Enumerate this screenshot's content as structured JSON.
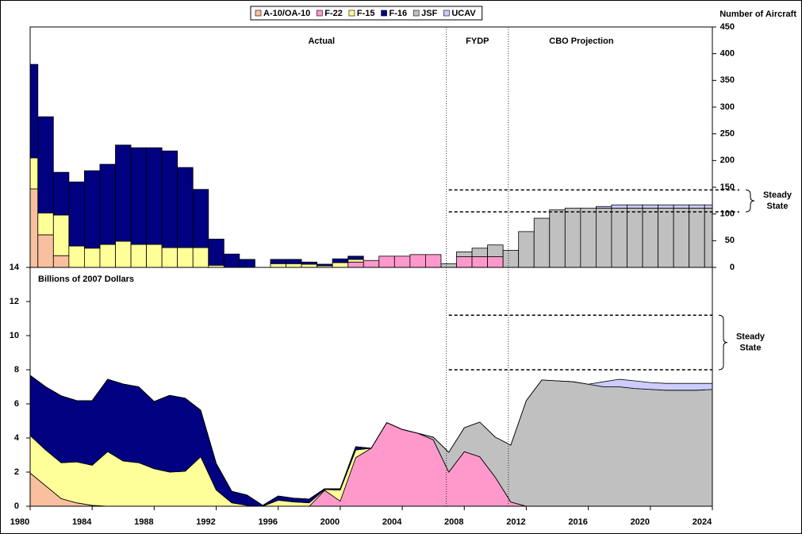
{
  "chart_data": [
    {
      "type": "bar",
      "stacked": true,
      "y_label": "Number of Aircraft",
      "x": [
        1980,
        1981,
        1982,
        1983,
        1984,
        1985,
        1986,
        1987,
        1988,
        1989,
        1990,
        1991,
        1992,
        1993,
        1994,
        1995,
        1996,
        1997,
        1998,
        1999,
        2000,
        2001,
        2002,
        2003,
        2004,
        2005,
        2006,
        2007,
        2008,
        2009,
        2010,
        2011,
        2012,
        2013,
        2014,
        2015,
        2016,
        2017,
        2018,
        2019,
        2020,
        2021,
        2022,
        2023,
        2024
      ],
      "xlim": [
        1980,
        2024
      ],
      "ylim": [
        0,
        450
      ],
      "yticks": [
        0,
        50,
        100,
        150,
        200,
        250,
        300,
        350,
        400,
        450
      ],
      "series": [
        {
          "name": "A-10/OA-10",
          "color": "#f9c09f",
          "values": [
            147,
            61,
            22,
            0,
            0,
            0,
            0,
            0,
            0,
            0,
            0,
            0,
            0,
            0,
            0,
            0,
            0,
            0,
            0,
            0,
            0,
            0,
            0,
            0,
            0,
            0,
            0,
            0,
            0,
            0,
            0,
            0,
            0,
            0,
            0,
            0,
            0,
            0,
            0,
            0,
            0,
            0,
            0,
            0,
            0
          ]
        },
        {
          "name": "F-22",
          "color": "#ff99cc",
          "values": [
            0,
            0,
            0,
            0,
            0,
            0,
            0,
            0,
            0,
            0,
            0,
            0,
            0,
            0,
            0,
            0,
            0,
            0,
            0,
            0,
            0,
            10,
            13,
            21,
            21,
            24,
            24,
            0,
            20,
            20,
            20,
            0,
            0,
            0,
            0,
            0,
            0,
            0,
            0,
            0,
            0,
            0,
            0,
            0,
            0
          ]
        },
        {
          "name": "F-15",
          "color": "#ffff99",
          "values": [
            58,
            41,
            76,
            40,
            36,
            43,
            49,
            43,
            43,
            37,
            37,
            37,
            4,
            0,
            0,
            0,
            7,
            7,
            6,
            3,
            9,
            5,
            0,
            0,
            0,
            0,
            0,
            0,
            0,
            0,
            0,
            0,
            0,
            0,
            0,
            0,
            0,
            0,
            0,
            0,
            0,
            0,
            0,
            0,
            0
          ]
        },
        {
          "name": "F-16",
          "color": "#000080",
          "values": [
            175,
            180,
            80,
            120,
            145,
            150,
            180,
            181,
            181,
            181,
            150,
            109,
            49,
            25,
            15,
            0,
            8,
            8,
            4,
            3,
            7,
            6,
            0,
            0,
            0,
            0,
            0,
            0,
            0,
            0,
            0,
            0,
            0,
            0,
            0,
            0,
            0,
            0,
            0,
            0,
            0,
            0,
            0,
            0,
            0
          ]
        },
        {
          "name": "JSF",
          "color": "#c0c0c0",
          "values": [
            0,
            0,
            0,
            0,
            0,
            0,
            0,
            0,
            0,
            0,
            0,
            0,
            0,
            0,
            0,
            0,
            0,
            0,
            0,
            0,
            0,
            0,
            0,
            0,
            0,
            0,
            0,
            7,
            9,
            16,
            22,
            32,
            67,
            92,
            108,
            111,
            111,
            111,
            111,
            111,
            111,
            111,
            111,
            111,
            111
          ]
        },
        {
          "name": "UCAV",
          "color": "#ccccff",
          "values": [
            0,
            0,
            0,
            0,
            0,
            0,
            0,
            0,
            0,
            0,
            0,
            0,
            0,
            0,
            0,
            0,
            0,
            0,
            0,
            0,
            0,
            0,
            0,
            0,
            0,
            0,
            0,
            0,
            0,
            0,
            0,
            0,
            0,
            0,
            0,
            0,
            0,
            3,
            6,
            6,
            6,
            6,
            6,
            6,
            6
          ]
        }
      ],
      "dividers": [
        2007,
        2011
      ],
      "periods": [
        "Actual",
        "FYDP",
        "CBO Projection"
      ],
      "steady_state": {
        "label": "Steady State",
        "values": [
          104,
          145
        ]
      }
    },
    {
      "type": "area",
      "stacked": true,
      "y_label": "Billions of 2007 Dollars",
      "x": [
        1980,
        1981,
        1982,
        1983,
        1984,
        1985,
        1986,
        1987,
        1988,
        1989,
        1990,
        1991,
        1992,
        1993,
        1994,
        1995,
        1996,
        1997,
        1998,
        1999,
        2000,
        2001,
        2002,
        2003,
        2004,
        2005,
        2006,
        2007,
        2008,
        2009,
        2010,
        2011,
        2012,
        2013,
        2014,
        2015,
        2016,
        2017,
        2018,
        2019,
        2020,
        2021,
        2022,
        2023,
        2024
      ],
      "xlim": [
        1980,
        2024
      ],
      "xticks": [
        1980,
        1984,
        1988,
        1992,
        1996,
        2000,
        2004,
        2008,
        2012,
        2016,
        2020,
        2024
      ],
      "ylim": [
        0,
        14
      ],
      "yticks": [
        0,
        2,
        4,
        6,
        8,
        10,
        12,
        14
      ],
      "series": [
        {
          "color": "#f9c09f",
          "values": [
            1.95,
            1.2,
            0.45,
            0.2,
            0.05,
            0,
            0,
            0,
            0,
            0,
            0,
            0,
            0,
            0,
            0,
            0,
            0,
            0,
            0,
            0,
            0,
            0,
            0,
            0,
            0,
            0,
            0,
            0,
            0,
            0,
            0,
            0,
            0,
            0,
            0,
            0,
            0,
            0,
            0,
            0,
            0,
            0,
            0,
            0,
            0
          ]
        },
        {
          "color": "#ff99cc",
          "values": [
            0,
            0,
            0,
            0,
            0,
            0,
            0,
            0,
            0,
            0,
            0,
            0,
            0,
            0,
            0,
            0,
            0,
            0,
            0,
            0.93,
            0.3,
            2.85,
            3.4,
            4.9,
            4.5,
            4.28,
            3.9,
            2.0,
            3.2,
            2.9,
            1.7,
            0.25,
            0,
            0,
            0,
            0,
            0,
            0,
            0,
            0,
            0,
            0,
            0,
            0,
            0
          ]
        },
        {
          "color": "#ffff99",
          "values": [
            2.2,
            2.1,
            2.1,
            2.4,
            2.35,
            3.2,
            2.65,
            2.55,
            2.2,
            2.0,
            2.05,
            2.9,
            0.95,
            0.2,
            0.05,
            0,
            0.35,
            0.25,
            0.2,
            0.05,
            0.65,
            0.45,
            0,
            0,
            0,
            0,
            0,
            0,
            0,
            0,
            0,
            0,
            0,
            0,
            0,
            0,
            0,
            0,
            0,
            0,
            0,
            0,
            0,
            0,
            0
          ]
        },
        {
          "color": "#000080",
          "values": [
            3.52,
            3.7,
            3.92,
            3.59,
            3.79,
            4.24,
            4.51,
            4.45,
            3.94,
            4.5,
            4.28,
            2.73,
            1.56,
            0.68,
            0.6,
            0.05,
            0.25,
            0.22,
            0.22,
            0.05,
            0.07,
            0.19,
            0,
            0,
            0,
            0,
            0,
            0,
            0,
            0,
            0,
            0,
            0,
            0,
            0,
            0,
            0,
            0,
            0,
            0,
            0,
            0,
            0,
            0,
            0
          ]
        },
        {
          "color": "#c0c0c0",
          "values": [
            0,
            0,
            0,
            0,
            0,
            0,
            0,
            0,
            0,
            0,
            0,
            0,
            0,
            0,
            0,
            0,
            0,
            0,
            0,
            0,
            0,
            0,
            0,
            0,
            0,
            0,
            0.15,
            1.16,
            1.4,
            2.03,
            2.35,
            3.33,
            6.19,
            7.4,
            7.35,
            7.3,
            7.15,
            7.0,
            7.0,
            6.9,
            6.85,
            6.8,
            6.8,
            6.8,
            6.85
          ]
        },
        {
          "color": "#ccccff",
          "values": [
            0,
            0,
            0,
            0,
            0,
            0,
            0,
            0,
            0,
            0,
            0,
            0,
            0,
            0,
            0,
            0,
            0,
            0,
            0,
            0,
            0,
            0,
            0,
            0,
            0,
            0,
            0,
            0,
            0,
            0,
            0,
            0,
            0,
            0,
            0,
            0,
            0,
            0.3,
            0.44,
            0.45,
            0.4,
            0.4,
            0.4,
            0.4,
            0.35
          ]
        }
      ],
      "steady_state": {
        "label": "Steady State",
        "values": [
          8,
          11.2
        ]
      }
    }
  ]
}
